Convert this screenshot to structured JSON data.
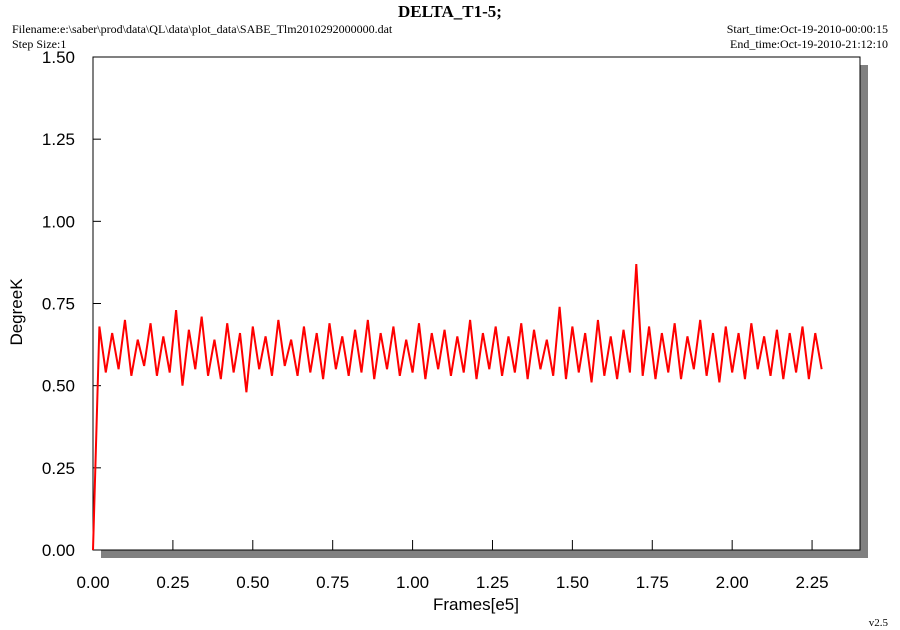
{
  "chart_data": {
    "type": "line",
    "title": "DELTA_T1-5;",
    "filename": "Filename:e:\\saber\\prod\\data\\QL\\data\\plot_data\\SABE_Tlm2010292000000.dat",
    "step_size": "Step Size:1",
    "start_time": "Start_time:Oct-19-2010-00:00:15",
    "end_time": "End_time:Oct-19-2010-21:12:10",
    "version": "v2.5",
    "xlabel": "Frames[e5]",
    "ylabel": "DegreeK",
    "color": "#ff0000",
    "xlim": [
      0,
      2.4
    ],
    "ylim": [
      0,
      1.5
    ],
    "xticks": [
      {
        "value": 0,
        "label": "0.00"
      },
      {
        "value": 0.25,
        "label": "0.25"
      },
      {
        "value": 0.5,
        "label": "0.50"
      },
      {
        "value": 0.75,
        "label": "0.75"
      },
      {
        "value": 1,
        "label": "1.00"
      },
      {
        "value": 1.25,
        "label": "1.25"
      },
      {
        "value": 1.5,
        "label": "1.50"
      },
      {
        "value": 1.75,
        "label": "1.75"
      },
      {
        "value": 2,
        "label": "2.00"
      },
      {
        "value": 2.25,
        "label": "2.25"
      }
    ],
    "yticks": [
      {
        "value": 0,
        "label": "0.00"
      },
      {
        "value": 0.25,
        "label": "0.25"
      },
      {
        "value": 0.5,
        "label": "0.50"
      },
      {
        "value": 0.75,
        "label": "0.75"
      },
      {
        "value": 1,
        "label": "1.00"
      },
      {
        "value": 1.25,
        "label": "1.25"
      },
      {
        "value": 1.5,
        "label": "1.50"
      }
    ],
    "x": [
      0,
      0.02,
      0.04,
      0.06,
      0.08,
      0.1,
      0.12,
      0.14,
      0.16,
      0.18,
      0.2,
      0.22,
      0.24,
      0.26,
      0.28,
      0.3,
      0.32,
      0.34,
      0.36,
      0.38,
      0.4,
      0.42,
      0.44,
      0.46,
      0.48,
      0.5,
      0.52,
      0.54,
      0.56,
      0.58,
      0.6,
      0.62,
      0.64,
      0.66,
      0.68,
      0.7,
      0.72,
      0.74,
      0.76,
      0.78,
      0.8,
      0.82,
      0.84,
      0.86,
      0.88,
      0.9,
      0.92,
      0.94,
      0.96,
      0.98,
      1,
      1.02,
      1.04,
      1.06,
      1.08,
      1.1,
      1.12,
      1.14,
      1.16,
      1.18,
      1.2,
      1.22,
      1.24,
      1.26,
      1.28,
      1.3,
      1.32,
      1.34,
      1.36,
      1.38,
      1.4,
      1.42,
      1.44,
      1.46,
      1.48,
      1.5,
      1.52,
      1.54,
      1.56,
      1.58,
      1.6,
      1.62,
      1.64,
      1.66,
      1.68,
      1.7,
      1.72,
      1.74,
      1.76,
      1.78,
      1.8,
      1.82,
      1.84,
      1.86,
      1.88,
      1.9,
      1.92,
      1.94,
      1.96,
      1.98,
      2,
      2.02,
      2.04,
      2.06,
      2.08,
      2.1,
      2.12,
      2.14,
      2.16,
      2.18,
      2.2,
      2.22,
      2.24,
      2.26,
      2.28
    ],
    "values": [
      0,
      0.68,
      0.54,
      0.66,
      0.55,
      0.7,
      0.53,
      0.64,
      0.56,
      0.69,
      0.53,
      0.65,
      0.54,
      0.73,
      0.5,
      0.67,
      0.55,
      0.71,
      0.53,
      0.64,
      0.52,
      0.69,
      0.54,
      0.66,
      0.48,
      0.68,
      0.55,
      0.65,
      0.53,
      0.7,
      0.56,
      0.64,
      0.53,
      0.68,
      0.54,
      0.66,
      0.52,
      0.69,
      0.55,
      0.65,
      0.53,
      0.67,
      0.54,
      0.7,
      0.52,
      0.66,
      0.55,
      0.68,
      0.53,
      0.64,
      0.54,
      0.69,
      0.52,
      0.66,
      0.55,
      0.67,
      0.53,
      0.65,
      0.54,
      0.7,
      0.52,
      0.66,
      0.55,
      0.68,
      0.53,
      0.65,
      0.54,
      0.69,
      0.52,
      0.67,
      0.55,
      0.64,
      0.53,
      0.74,
      0.52,
      0.68,
      0.54,
      0.66,
      0.51,
      0.7,
      0.53,
      0.65,
      0.52,
      0.67,
      0.54,
      0.87,
      0.53,
      0.68,
      0.52,
      0.66,
      0.54,
      0.69,
      0.52,
      0.65,
      0.55,
      0.7,
      0.53,
      0.66,
      0.51,
      0.68,
      0.54,
      0.66,
      0.52,
      0.69,
      0.55,
      0.65,
      0.53,
      0.67,
      0.52,
      0.66,
      0.54,
      0.68,
      0.52,
      0.66,
      0.55
    ]
  }
}
